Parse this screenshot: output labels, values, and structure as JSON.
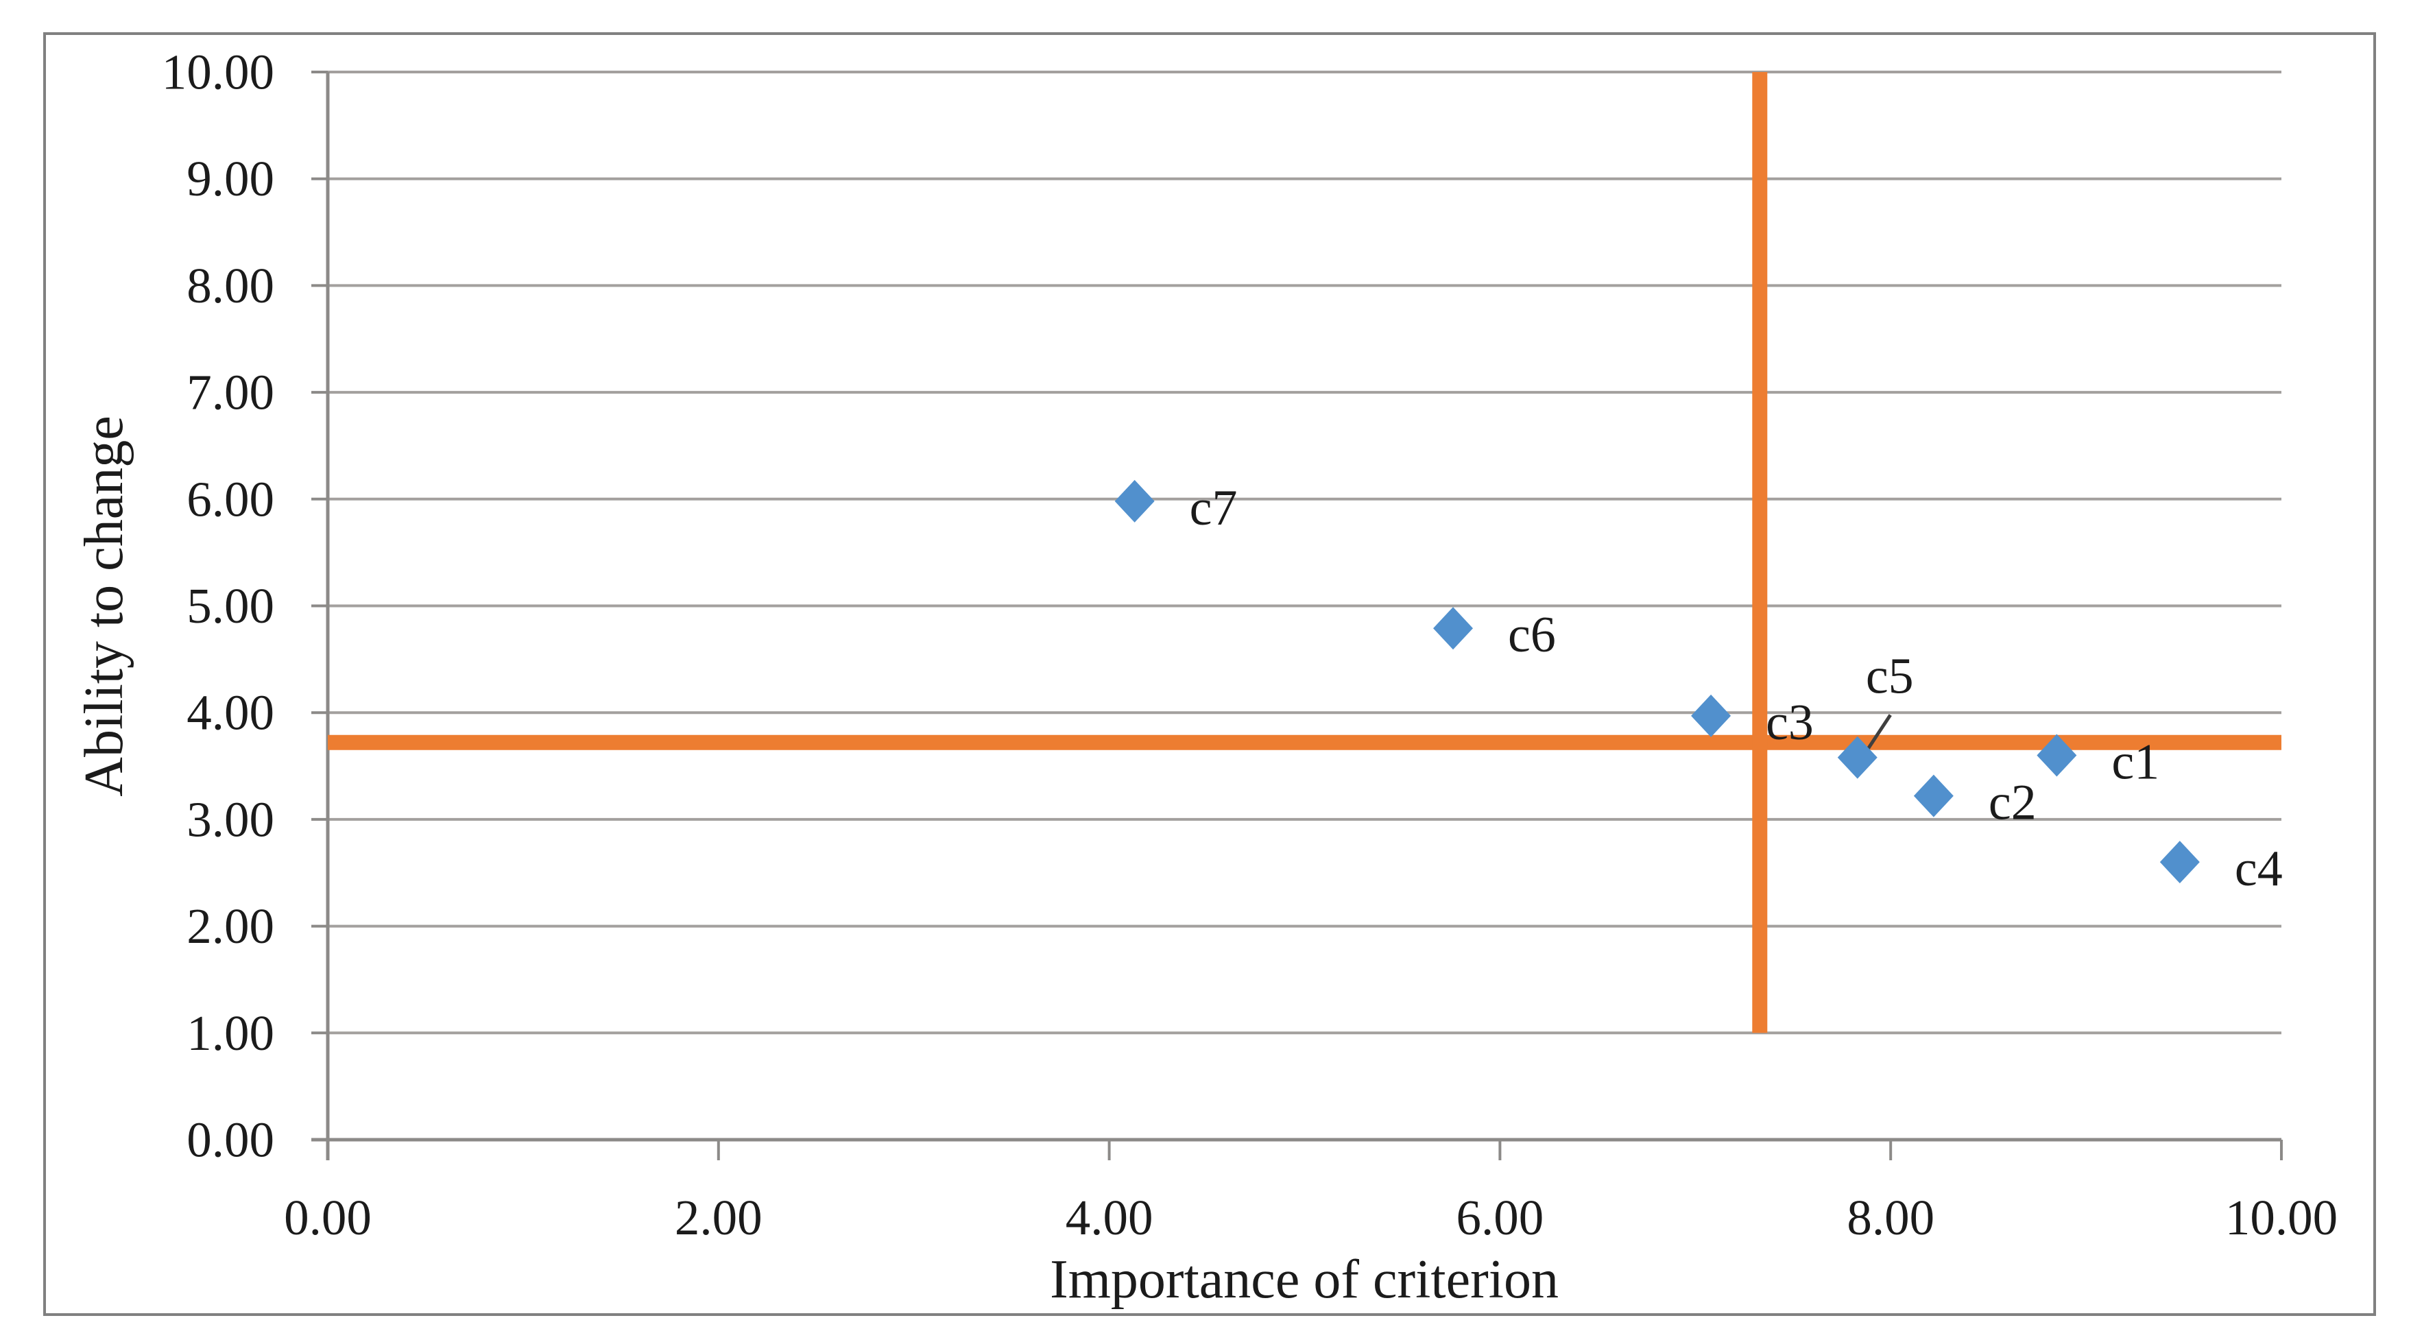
{
  "figure": {
    "background": "#ffffff",
    "border_color": "#808080"
  },
  "chart_data": {
    "type": "scatter",
    "title": "",
    "xlabel": "Importance of criterion",
    "ylabel": "Ability to change",
    "xlim": [
      0,
      10
    ],
    "ylim": [
      0,
      10
    ],
    "grid": "horizontal-only",
    "legend": "none",
    "x_ticks": [
      {
        "value": 0,
        "label": "0.00"
      },
      {
        "value": 2,
        "label": "2.00"
      },
      {
        "value": 4,
        "label": "4.00"
      },
      {
        "value": 6,
        "label": "6.00"
      },
      {
        "value": 8,
        "label": "8.00"
      },
      {
        "value": 10,
        "label": "10.00"
      }
    ],
    "y_ticks": [
      {
        "value": 0,
        "label": "0.00"
      },
      {
        "value": 1,
        "label": "1.00"
      },
      {
        "value": 2,
        "label": "2.00"
      },
      {
        "value": 3,
        "label": "3.00"
      },
      {
        "value": 4,
        "label": "4.00"
      },
      {
        "value": 5,
        "label": "5.00"
      },
      {
        "value": 6,
        "label": "6.00"
      },
      {
        "value": 7,
        "label": "7.00"
      },
      {
        "value": 8,
        "label": "8.00"
      },
      {
        "value": 9,
        "label": "9.00"
      },
      {
        "value": 10,
        "label": "10.00"
      }
    ],
    "points": [
      {
        "label": "c1",
        "x": 8.85,
        "y": 3.6,
        "label_pos": "right"
      },
      {
        "label": "c2",
        "x": 8.22,
        "y": 3.22,
        "label_pos": "right"
      },
      {
        "label": "c3",
        "x": 7.08,
        "y": 3.97,
        "label_pos": "right"
      },
      {
        "label": "c4",
        "x": 9.48,
        "y": 2.6,
        "label_pos": "right"
      },
      {
        "label": "c5",
        "x": 7.83,
        "y": 3.58,
        "label_pos": "above",
        "leader": {
          "x1": 48,
          "y1": -62,
          "x2": 9,
          "y2": -3
        }
      },
      {
        "label": "c6",
        "x": 5.76,
        "y": 4.79,
        "label_pos": "right"
      },
      {
        "label": "c7",
        "x": 4.13,
        "y": 5.98,
        "label_pos": "right"
      }
    ],
    "crosshair": {
      "x_value": 7.33,
      "x_line_span": [
        1.0,
        10.0
      ],
      "y_value": 3.72,
      "y_line_span": [
        0.0,
        10.0
      ]
    },
    "marker": {
      "shape": "diamond",
      "fill": "#5190CD"
    },
    "colors": {
      "crosshair": "#ED7D31",
      "gridline": "#A3A09E",
      "axis": "#8C8A88",
      "text": "#1B1B1B",
      "leader_line": "#3F3F3F"
    }
  }
}
